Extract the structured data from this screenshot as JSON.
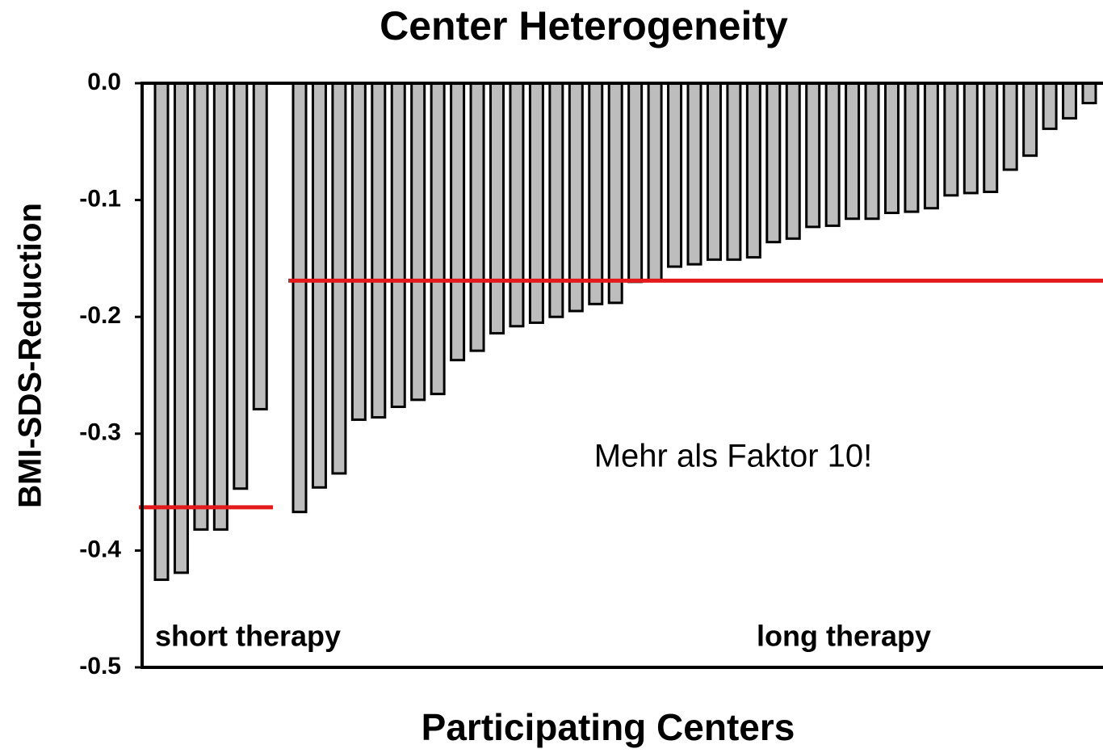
{
  "chart_data": {
    "type": "bar",
    "title": "Center Heterogeneity",
    "y_label": "BMI-SDS-Reduction",
    "x_label": "Participating Centers",
    "annotation": "Mehr als Faktor 10!",
    "ylim": [
      -0.5,
      0
    ],
    "yticks": [
      {
        "value": 0,
        "label": "0.0"
      },
      -0.1,
      -0.2,
      -0.3,
      -0.4,
      -0.5
    ],
    "bar_color": "#bdbdbd",
    "mean_color": "#e4191c",
    "groups": [
      {
        "label": "short therapy",
        "mean": -0.363,
        "values": [
          -0.425,
          -0.419,
          -0.382,
          -0.382,
          -0.347,
          -0.279
        ]
      },
      {
        "label": "long therapy",
        "mean": -0.169,
        "values": [
          -0.367,
          -0.346,
          -0.334,
          -0.288,
          -0.286,
          -0.277,
          -0.271,
          -0.266,
          -0.237,
          -0.229,
          -0.214,
          -0.208,
          -0.205,
          -0.2,
          -0.195,
          -0.189,
          -0.188,
          -0.17,
          -0.169,
          -0.157,
          -0.155,
          -0.151,
          -0.151,
          -0.149,
          -0.136,
          -0.133,
          -0.123,
          -0.122,
          -0.116,
          -0.116,
          -0.111,
          -0.11,
          -0.107,
          -0.096,
          -0.094,
          -0.093,
          -0.074,
          -0.062,
          -0.039,
          -0.03,
          -0.017
        ]
      }
    ]
  }
}
